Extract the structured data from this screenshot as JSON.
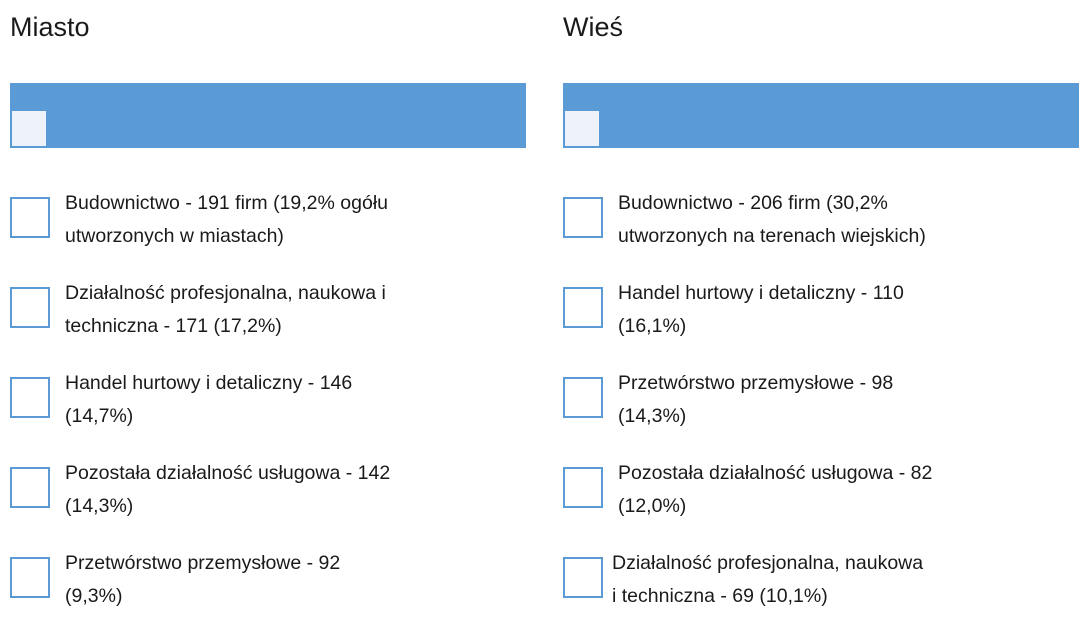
{
  "columns": [
    {
      "title": "Miasto",
      "items": [
        [
          "Budownictwo - 191 firm (19,2% ogółu",
          "utworzonych w miastach)"
        ],
        [
          "Działalność profesjonalna, naukowa i",
          "techniczna - 171 (17,2%)"
        ],
        [
          "Handel hurtowy i detaliczny - 146",
          "(14,7%)"
        ],
        [
          "Pozostała działalność usługowa - 142",
          "(14,3%)"
        ],
        [
          "Przetwórstwo przemysłowe - 92",
          "(9,3%)"
        ]
      ]
    },
    {
      "title": "Wieś",
      "items": [
        [
          "Budownictwo - 206 firm (30,2%",
          "utworzonych na terenach wiejskich)"
        ],
        [
          "Handel hurtowy i detaliczny - 110",
          "(16,1%)"
        ],
        [
          "Przetwórstwo przemysłowe - 98",
          "(14,3%)"
        ],
        [
          "Pozostała działalność usługowa - 82",
          "(12,0%)"
        ],
        [
          "Działalność profesjonalna, naukowa",
          "i techniczna - 69 (10,1%)"
        ]
      ]
    }
  ]
}
